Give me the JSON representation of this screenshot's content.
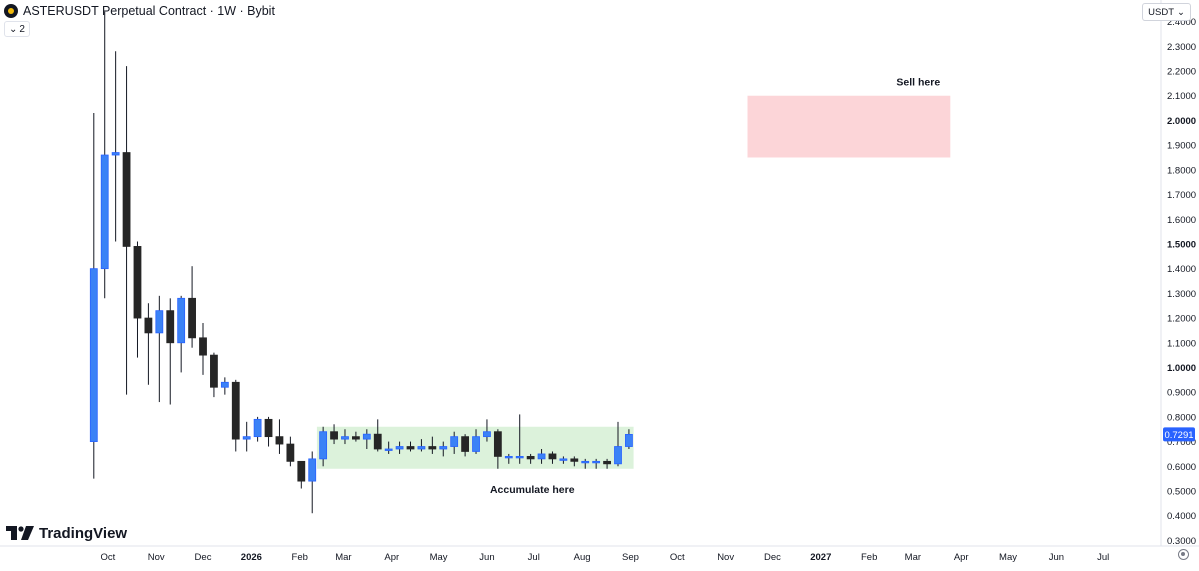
{
  "header": {
    "title": "ASTERUSDT Perpetual Contract · 1W · Bybit",
    "indicator_count": "2",
    "currency": "USDT"
  },
  "branding": {
    "logo_text": "TradingView"
  },
  "colors": {
    "up": "#2962ff",
    "up_body": "#3b82f6",
    "down": "#262626",
    "wick": "#131722",
    "sell_zone": "#fcd5d8",
    "accumulate_zone": "#dcf2db",
    "last_price_bg": "#2962ff",
    "axis_text": "#131722"
  },
  "chart_data": {
    "type": "candlestick",
    "symbol": "ASTERUSDT",
    "interval": "1W",
    "exchange": "Bybit",
    "y_axis": {
      "min": 0.3,
      "max": 2.46,
      "ticks": [
        2.4,
        2.3,
        2.2,
        2.1,
        2.0,
        1.9,
        1.8,
        1.7,
        1.6,
        1.5,
        1.4,
        1.3,
        1.2,
        1.1,
        1.0,
        0.9,
        0.8,
        0.7,
        0.6,
        0.5,
        0.4,
        0.3
      ],
      "tick_labels": [
        "2.4000",
        "2.3000",
        "2.2000",
        "2.1000",
        "2.0000",
        "1.9000",
        "1.8000",
        "1.7000",
        "1.6000",
        "1.5000",
        "1.4000",
        "1.3000",
        "1.2000",
        "1.1000",
        "1.0000",
        "0.9000",
        "0.8000",
        "0.7000",
        "0.6000",
        "0.5000",
        "0.4000",
        "0.3000"
      ],
      "bold_labels": [
        "2.0000",
        "1.5000",
        "1.0000"
      ]
    },
    "x_axis": {
      "start_date": "2025-09-17",
      "end_date": "2027-07-31",
      "labels": [
        {
          "text": "Oct",
          "date": "2025-10-01"
        },
        {
          "text": "Nov",
          "date": "2025-11-01"
        },
        {
          "text": "Dec",
          "date": "2025-12-01"
        },
        {
          "text": "2026",
          "date": "2026-01-01",
          "bold": true
        },
        {
          "text": "Feb",
          "date": "2026-02-01"
        },
        {
          "text": "Mar",
          "date": "2026-03-01"
        },
        {
          "text": "Apr",
          "date": "2026-04-01"
        },
        {
          "text": "May",
          "date": "2026-05-01"
        },
        {
          "text": "Jun",
          "date": "2026-06-01"
        },
        {
          "text": "Jul",
          "date": "2026-07-01"
        },
        {
          "text": "Aug",
          "date": "2026-08-01"
        },
        {
          "text": "Sep",
          "date": "2026-09-01"
        },
        {
          "text": "Oct",
          "date": "2026-10-01"
        },
        {
          "text": "Nov",
          "date": "2026-11-01"
        },
        {
          "text": "Dec",
          "date": "2026-12-01"
        },
        {
          "text": "2027",
          "date": "2027-01-01",
          "bold": true
        },
        {
          "text": "Feb",
          "date": "2027-02-01"
        },
        {
          "text": "Mar",
          "date": "2027-03-01"
        },
        {
          "text": "Apr",
          "date": "2027-04-01"
        },
        {
          "text": "May",
          "date": "2027-05-01"
        },
        {
          "text": "Jun",
          "date": "2027-06-01"
        },
        {
          "text": "Jul",
          "date": "2027-07-01"
        }
      ]
    },
    "candles": [
      {
        "date": "2025-09-22",
        "open": 0.7,
        "high": 2.03,
        "low": 0.55,
        "close": 1.4
      },
      {
        "date": "2025-09-29",
        "open": 1.4,
        "high": 2.44,
        "low": 1.28,
        "close": 1.86
      },
      {
        "date": "2025-10-06",
        "open": 1.86,
        "high": 2.28,
        "low": 1.51,
        "close": 1.87
      },
      {
        "date": "2025-10-13",
        "open": 1.87,
        "high": 2.22,
        "low": 0.89,
        "close": 1.49
      },
      {
        "date": "2025-10-20",
        "open": 1.49,
        "high": 1.51,
        "low": 1.04,
        "close": 1.2
      },
      {
        "date": "2025-10-27",
        "open": 1.2,
        "high": 1.26,
        "low": 0.93,
        "close": 1.14
      },
      {
        "date": "2025-11-03",
        "open": 1.14,
        "high": 1.29,
        "low": 0.86,
        "close": 1.23
      },
      {
        "date": "2025-11-10",
        "open": 1.23,
        "high": 1.28,
        "low": 0.85,
        "close": 1.1
      },
      {
        "date": "2025-11-17",
        "open": 1.1,
        "high": 1.29,
        "low": 0.98,
        "close": 1.28
      },
      {
        "date": "2025-11-24",
        "open": 1.28,
        "high": 1.41,
        "low": 1.08,
        "close": 1.12
      },
      {
        "date": "2025-12-01",
        "open": 1.12,
        "high": 1.18,
        "low": 0.97,
        "close": 1.05
      },
      {
        "date": "2025-12-08",
        "open": 1.05,
        "high": 1.06,
        "low": 0.88,
        "close": 0.92
      },
      {
        "date": "2025-12-15",
        "open": 0.92,
        "high": 0.96,
        "low": 0.89,
        "close": 0.94
      },
      {
        "date": "2025-12-22",
        "open": 0.94,
        "high": 0.95,
        "low": 0.66,
        "close": 0.71
      },
      {
        "date": "2025-12-29",
        "open": 0.71,
        "high": 0.78,
        "low": 0.66,
        "close": 0.72
      },
      {
        "date": "2026-01-05",
        "open": 0.72,
        "high": 0.8,
        "low": 0.7,
        "close": 0.79
      },
      {
        "date": "2026-01-12",
        "open": 0.79,
        "high": 0.8,
        "low": 0.68,
        "close": 0.72
      },
      {
        "date": "2026-01-19",
        "open": 0.72,
        "high": 0.79,
        "low": 0.65,
        "close": 0.69
      },
      {
        "date": "2026-01-26",
        "open": 0.69,
        "high": 0.72,
        "low": 0.6,
        "close": 0.62
      },
      {
        "date": "2026-02-02",
        "open": 0.62,
        "high": 0.62,
        "low": 0.51,
        "close": 0.54
      },
      {
        "date": "2026-02-09",
        "open": 0.54,
        "high": 0.66,
        "low": 0.41,
        "close": 0.63
      },
      {
        "date": "2026-02-16",
        "open": 0.63,
        "high": 0.76,
        "low": 0.6,
        "close": 0.74
      },
      {
        "date": "2026-02-23",
        "open": 0.74,
        "high": 0.77,
        "low": 0.69,
        "close": 0.71
      },
      {
        "date": "2026-03-02",
        "open": 0.71,
        "high": 0.75,
        "low": 0.69,
        "close": 0.72
      },
      {
        "date": "2026-03-09",
        "open": 0.72,
        "high": 0.74,
        "low": 0.7,
        "close": 0.71
      },
      {
        "date": "2026-03-16",
        "open": 0.71,
        "high": 0.75,
        "low": 0.67,
        "close": 0.73
      },
      {
        "date": "2026-03-23",
        "open": 0.73,
        "high": 0.79,
        "low": 0.66,
        "close": 0.67
      },
      {
        "date": "2026-03-30",
        "open": 0.67,
        "high": 0.7,
        "low": 0.65,
        "close": 0.67
      },
      {
        "date": "2026-04-06",
        "open": 0.67,
        "high": 0.7,
        "low": 0.65,
        "close": 0.68
      },
      {
        "date": "2026-04-13",
        "open": 0.68,
        "high": 0.7,
        "low": 0.66,
        "close": 0.67
      },
      {
        "date": "2026-04-20",
        "open": 0.67,
        "high": 0.71,
        "low": 0.66,
        "close": 0.68
      },
      {
        "date": "2026-04-27",
        "open": 0.68,
        "high": 0.72,
        "low": 0.65,
        "close": 0.67
      },
      {
        "date": "2026-05-04",
        "open": 0.67,
        "high": 0.7,
        "low": 0.64,
        "close": 0.68
      },
      {
        "date": "2026-05-11",
        "open": 0.68,
        "high": 0.74,
        "low": 0.65,
        "close": 0.72
      },
      {
        "date": "2026-05-18",
        "open": 0.72,
        "high": 0.73,
        "low": 0.64,
        "close": 0.66
      },
      {
        "date": "2026-05-25",
        "open": 0.66,
        "high": 0.75,
        "low": 0.65,
        "close": 0.72
      },
      {
        "date": "2026-06-01",
        "open": 0.72,
        "high": 0.79,
        "low": 0.7,
        "close": 0.74
      },
      {
        "date": "2026-06-08",
        "open": 0.74,
        "high": 0.75,
        "low": 0.59,
        "close": 0.64
      },
      {
        "date": "2026-06-15",
        "open": 0.64,
        "high": 0.65,
        "low": 0.61,
        "close": 0.64
      },
      {
        "date": "2026-06-22",
        "open": 0.64,
        "high": 0.81,
        "low": 0.61,
        "close": 0.64
      },
      {
        "date": "2026-06-29",
        "open": 0.64,
        "high": 0.65,
        "low": 0.61,
        "close": 0.63
      },
      {
        "date": "2026-07-06",
        "open": 0.63,
        "high": 0.67,
        "low": 0.61,
        "close": 0.65
      },
      {
        "date": "2026-07-13",
        "open": 0.65,
        "high": 0.66,
        "low": 0.61,
        "close": 0.63
      },
      {
        "date": "2026-07-20",
        "open": 0.63,
        "high": 0.64,
        "low": 0.61,
        "close": 0.63
      },
      {
        "date": "2026-07-27",
        "open": 0.63,
        "high": 0.64,
        "low": 0.6,
        "close": 0.62
      },
      {
        "date": "2026-08-03",
        "open": 0.62,
        "high": 0.63,
        "low": 0.59,
        "close": 0.62
      },
      {
        "date": "2026-08-10",
        "open": 0.62,
        "high": 0.63,
        "low": 0.59,
        "close": 0.62
      },
      {
        "date": "2026-08-17",
        "open": 0.62,
        "high": 0.63,
        "low": 0.59,
        "close": 0.61
      },
      {
        "date": "2026-08-24",
        "open": 0.61,
        "high": 0.78,
        "low": 0.6,
        "close": 0.68
      },
      {
        "date": "2026-08-31",
        "open": 0.68,
        "high": 0.75,
        "low": 0.67,
        "close": 0.7291
      }
    ],
    "zones": [
      {
        "label": "Sell here",
        "start": "2026-11-15",
        "end": "2027-03-25",
        "top": 2.1,
        "bottom": 1.85,
        "color": "#fcd5d8"
      },
      {
        "label": "Accumulate here",
        "start": "2026-02-12",
        "end": "2026-09-03",
        "top": 0.76,
        "bottom": 0.59,
        "color": "#dcf2db"
      }
    ],
    "last_price": {
      "value": 0.7291,
      "label": "0.7291"
    }
  }
}
